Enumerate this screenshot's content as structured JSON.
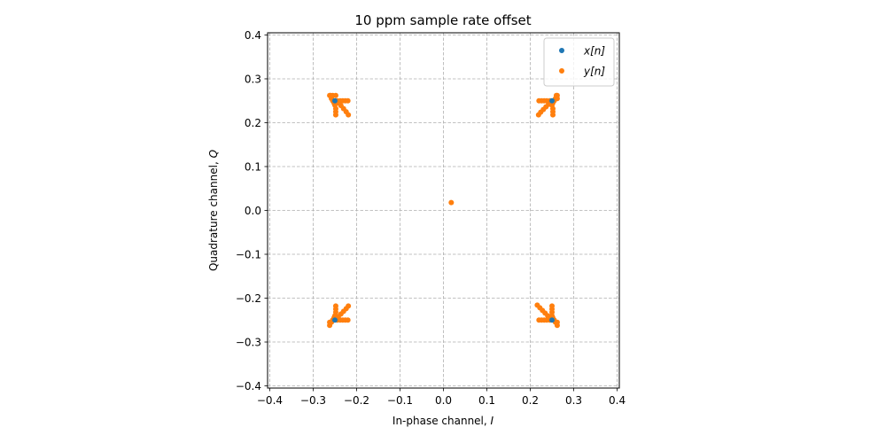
{
  "chart_data": {
    "type": "scatter",
    "title": "10 ppm sample rate offset",
    "xlabel": "In-phase channel, ",
    "xlabel_var": "I",
    "ylabel": "Quadrature channel, ",
    "ylabel_var": "Q",
    "xlim": [
      -0.405,
      0.405
    ],
    "ylim": [
      -0.405,
      0.405
    ],
    "xticks": [
      -0.4,
      -0.3,
      -0.2,
      -0.1,
      0.0,
      0.1,
      0.2,
      0.3,
      0.4
    ],
    "yticks": [
      -0.4,
      -0.3,
      -0.2,
      -0.1,
      0.0,
      0.1,
      0.2,
      0.3,
      0.4
    ],
    "xtick_labels": [
      "−0.4",
      "−0.3",
      "−0.2",
      "−0.1",
      "0.0",
      "0.1",
      "0.2",
      "0.3",
      "0.4"
    ],
    "ytick_labels": [
      "−0.4",
      "−0.3",
      "−0.2",
      "−0.1",
      "0.0",
      "0.1",
      "0.2",
      "0.3",
      "0.4"
    ],
    "grid": true,
    "legend_position": "top-right",
    "series": [
      {
        "name": "x[n]",
        "color": "#1f77b4",
        "points": [
          [
            -0.25,
            0.25
          ],
          [
            0.25,
            0.25
          ],
          [
            -0.25,
            -0.25
          ],
          [
            0.25,
            -0.25
          ]
        ]
      },
      {
        "name": "y[n]",
        "color": "#ff7f0e",
        "points": [
          [
            0.018,
            0.018
          ],
          [
            -0.26,
            0.262
          ],
          [
            -0.258,
            0.255
          ],
          [
            -0.255,
            0.25
          ],
          [
            -0.252,
            0.245
          ],
          [
            -0.25,
            0.24
          ],
          [
            -0.248,
            0.232
          ],
          [
            -0.248,
            0.225
          ],
          [
            -0.248,
            0.218
          ],
          [
            -0.262,
            0.262
          ],
          [
            -0.255,
            0.262
          ],
          [
            -0.248,
            0.262
          ],
          [
            -0.245,
            0.25
          ],
          [
            -0.238,
            0.25
          ],
          [
            -0.232,
            0.25
          ],
          [
            -0.226,
            0.25
          ],
          [
            -0.22,
            0.25
          ],
          [
            -0.242,
            0.245
          ],
          [
            -0.236,
            0.239
          ],
          [
            -0.23,
            0.232
          ],
          [
            -0.224,
            0.225
          ],
          [
            -0.219,
            0.218
          ],
          [
            0.26,
            0.262
          ],
          [
            0.258,
            0.255
          ],
          [
            0.255,
            0.25
          ],
          [
            0.252,
            0.245
          ],
          [
            0.25,
            0.24
          ],
          [
            0.252,
            0.232
          ],
          [
            0.252,
            0.225
          ],
          [
            0.252,
            0.218
          ],
          [
            0.262,
            0.262
          ],
          [
            0.262,
            0.255
          ],
          [
            0.245,
            0.25
          ],
          [
            0.238,
            0.25
          ],
          [
            0.232,
            0.25
          ],
          [
            0.226,
            0.25
          ],
          [
            0.22,
            0.25
          ],
          [
            0.242,
            0.242
          ],
          [
            0.236,
            0.236
          ],
          [
            0.23,
            0.23
          ],
          [
            0.224,
            0.224
          ],
          [
            0.219,
            0.218
          ],
          [
            -0.262,
            -0.262
          ],
          [
            -0.258,
            -0.255
          ],
          [
            -0.255,
            -0.25
          ],
          [
            -0.252,
            -0.245
          ],
          [
            -0.25,
            -0.24
          ],
          [
            -0.248,
            -0.232
          ],
          [
            -0.248,
            -0.225
          ],
          [
            -0.248,
            -0.218
          ],
          [
            -0.262,
            -0.255
          ],
          [
            -0.245,
            -0.25
          ],
          [
            -0.238,
            -0.25
          ],
          [
            -0.232,
            -0.25
          ],
          [
            -0.226,
            -0.25
          ],
          [
            -0.22,
            -0.25
          ],
          [
            -0.242,
            -0.242
          ],
          [
            -0.236,
            -0.236
          ],
          [
            -0.23,
            -0.23
          ],
          [
            -0.224,
            -0.224
          ],
          [
            -0.219,
            -0.218
          ],
          [
            0.262,
            -0.262
          ],
          [
            0.258,
            -0.255
          ],
          [
            0.255,
            -0.25
          ],
          [
            0.252,
            -0.245
          ],
          [
            0.25,
            -0.24
          ],
          [
            0.25,
            -0.232
          ],
          [
            0.25,
            -0.225
          ],
          [
            0.25,
            -0.218
          ],
          [
            0.262,
            -0.255
          ],
          [
            0.245,
            -0.25
          ],
          [
            0.238,
            -0.25
          ],
          [
            0.232,
            -0.25
          ],
          [
            0.226,
            -0.25
          ],
          [
            0.22,
            -0.25
          ],
          [
            0.245,
            -0.245
          ],
          [
            0.24,
            -0.24
          ],
          [
            0.234,
            -0.234
          ],
          [
            0.228,
            -0.228
          ],
          [
            0.222,
            -0.222
          ],
          [
            0.216,
            -0.216
          ]
        ]
      }
    ]
  }
}
